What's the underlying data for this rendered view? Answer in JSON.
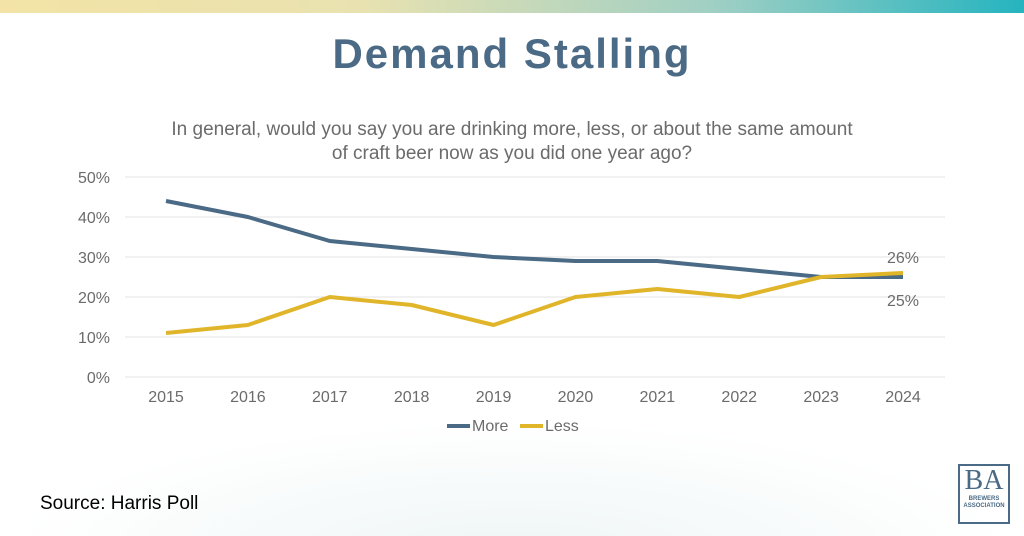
{
  "title": "Demand Stalling",
  "source": "Source: Harris Poll",
  "logo": {
    "line1": "BA",
    "line2": "BREWERS",
    "line3": "ASSOCIATION"
  },
  "chart_data": {
    "type": "line",
    "title": "In general, would you say you are drinking more, less, or about the same amount of craft beer now as you did one year ago?",
    "categories": [
      "2015",
      "2016",
      "2017",
      "2018",
      "2019",
      "2020",
      "2021",
      "2022",
      "2023",
      "2024"
    ],
    "yticks": [
      "0%",
      "10%",
      "20%",
      "30%",
      "40%",
      "50%"
    ],
    "ylim": [
      0,
      50
    ],
    "grid": true,
    "legend": "bottom",
    "series": [
      {
        "name": "More",
        "color": "#4a6a85",
        "values": [
          44,
          40,
          34,
          32,
          30,
          29,
          29,
          27,
          25,
          25
        ],
        "end_label": "25%"
      },
      {
        "name": "Less",
        "color": "#e0b52a",
        "values": [
          11,
          13,
          20,
          18,
          13,
          20,
          22,
          20,
          25,
          26
        ],
        "end_label": "26%"
      }
    ]
  }
}
